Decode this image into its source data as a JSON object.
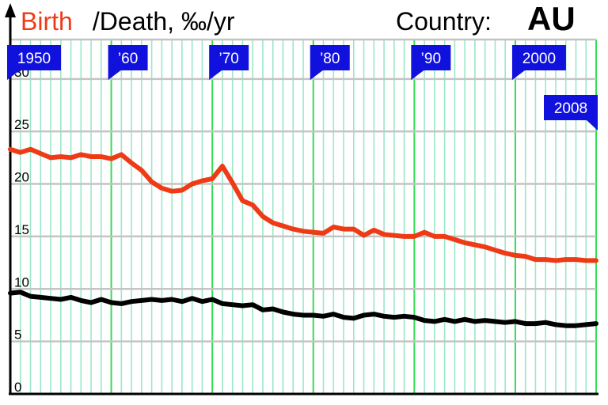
{
  "header": {
    "title_birth": "Birth",
    "title_rest": " /Death, ‰/yr",
    "country_label": "Country:",
    "country_code": "AU"
  },
  "colors": {
    "birth": "#ee3b16",
    "death": "#000000",
    "decade_grid": "#33dd55",
    "year_grid": "#99e8c8",
    "horizontal_grid": "#c4c4c4",
    "flag": "#1111dd"
  },
  "chart_data": {
    "type": "line",
    "title": "Birth /Death, ‰/yr",
    "x": [
      1950,
      1951,
      1952,
      1953,
      1954,
      1955,
      1956,
      1957,
      1958,
      1959,
      1960,
      1961,
      1962,
      1963,
      1964,
      1965,
      1966,
      1967,
      1968,
      1969,
      1970,
      1971,
      1972,
      1973,
      1974,
      1975,
      1976,
      1977,
      1978,
      1979,
      1980,
      1981,
      1982,
      1983,
      1984,
      1985,
      1986,
      1987,
      1988,
      1989,
      1990,
      1991,
      1992,
      1993,
      1994,
      1995,
      1996,
      1997,
      1998,
      1999,
      2000,
      2001,
      2002,
      2003,
      2004,
      2005,
      2006,
      2007,
      2008
    ],
    "series": [
      {
        "name": "Birth",
        "values": [
          23.3,
          23.0,
          23.3,
          22.9,
          22.5,
          22.6,
          22.5,
          22.8,
          22.6,
          22.6,
          22.4,
          22.8,
          22.0,
          21.3,
          20.2,
          19.6,
          19.3,
          19.4,
          20.0,
          20.3,
          20.5,
          21.7,
          20.1,
          18.4,
          18.0,
          16.9,
          16.3,
          16.0,
          15.7,
          15.5,
          15.4,
          15.3,
          15.9,
          15.7,
          15.7,
          15.1,
          15.6,
          15.2,
          15.1,
          15.0,
          15.0,
          15.4,
          15.0,
          15.0,
          14.7,
          14.4,
          14.2,
          14.0,
          13.7,
          13.4,
          13.2,
          13.1,
          12.8,
          12.8,
          12.7,
          12.8,
          12.8,
          12.7,
          12.7
        ]
      },
      {
        "name": "Death",
        "values": [
          9.6,
          9.7,
          9.3,
          9.2,
          9.1,
          9.0,
          9.2,
          8.9,
          8.7,
          9.0,
          8.7,
          8.6,
          8.8,
          8.9,
          9.0,
          8.9,
          9.0,
          8.8,
          9.1,
          8.8,
          9.0,
          8.6,
          8.5,
          8.4,
          8.5,
          8.0,
          8.1,
          7.8,
          7.6,
          7.5,
          7.5,
          7.4,
          7.6,
          7.3,
          7.2,
          7.5,
          7.6,
          7.4,
          7.3,
          7.4,
          7.3,
          7.0,
          6.9,
          7.1,
          6.9,
          7.1,
          6.9,
          7.0,
          6.9,
          6.8,
          6.9,
          6.7,
          6.7,
          6.8,
          6.6,
          6.5,
          6.5,
          6.6,
          6.7
        ]
      }
    ],
    "ylim": [
      0,
      33
    ],
    "yticks": [
      "0",
      "5",
      "10",
      "15",
      "20",
      "25",
      "30"
    ],
    "flags": [
      {
        "year": 1950,
        "label": "1950"
      },
      {
        "year": 1960,
        "label": "’60"
      },
      {
        "year": 1970,
        "label": "’70"
      },
      {
        "year": 1980,
        "label": "’80"
      },
      {
        "year": 1990,
        "label": "’90"
      },
      {
        "year": 2000,
        "label": "2000"
      },
      {
        "year": 2008,
        "label": "2008"
      }
    ],
    "grid": true
  }
}
